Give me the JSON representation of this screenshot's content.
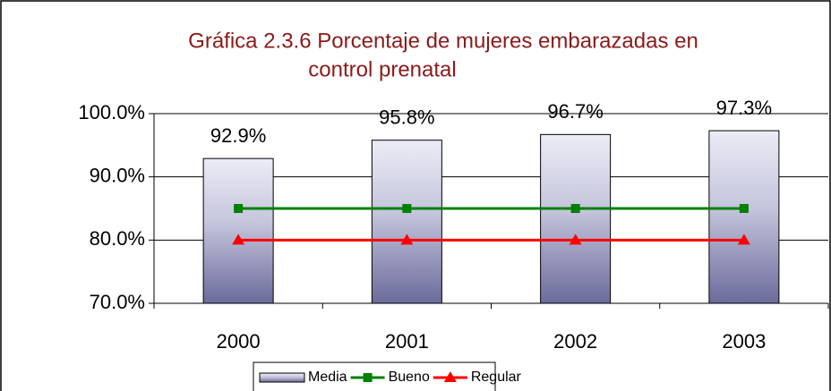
{
  "chart_data": {
    "type": "bar_line",
    "title": [
      "Gráfica 2.3.6 Porcentaje de mujeres embarazadas en",
      "control prenatal"
    ],
    "categories": [
      "2000",
      "2001",
      "2002",
      "2003"
    ],
    "series": [
      {
        "name": "Media",
        "type": "bar",
        "color": "#6b6b9b",
        "values": [
          92.9,
          95.8,
          96.7,
          97.3
        ],
        "value_labels": [
          "92.9%",
          "95.8%",
          "96.7%",
          "97.3%"
        ]
      },
      {
        "name": "Bueno",
        "type": "line",
        "marker": "square",
        "color": "#008000",
        "values": [
          85,
          85,
          85,
          85
        ]
      },
      {
        "name": "Regular",
        "type": "line",
        "marker": "triangle",
        "color": "#ff0000",
        "values": [
          80,
          80,
          80,
          80
        ]
      }
    ],
    "ylim": [
      70,
      100
    ],
    "yticks": [
      {
        "value": 70,
        "label": "70.0%"
      },
      {
        "value": 80,
        "label": "80.0%"
      },
      {
        "value": 90,
        "label": "90.0%"
      },
      {
        "value": 100,
        "label": "100.0%"
      }
    ],
    "grid": true,
    "legend": "bottom"
  }
}
